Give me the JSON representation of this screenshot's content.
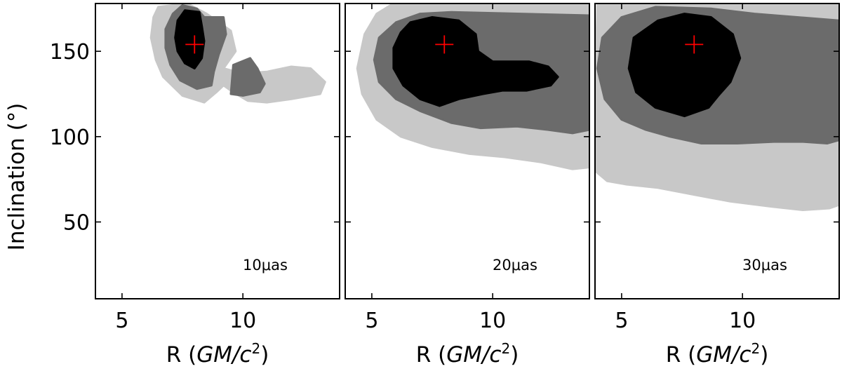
{
  "chart_data": {
    "type": "contour",
    "shared_y_axis": {
      "label": "Inclination (°)",
      "ticks": [
        50,
        100,
        150
      ],
      "ylim": [
        5,
        178
      ]
    },
    "shared_x_axis": {
      "label_prefix": "R (",
      "label_math": "GM/c",
      "label_exp": "2",
      "label_suffix": ")",
      "ticks": [
        5,
        10
      ],
      "xlim": [
        3.9,
        14
      ]
    },
    "levels": [
      {
        "name": "outer",
        "color": "#c8c8c8"
      },
      {
        "name": "middle",
        "color": "#6b6b6b"
      },
      {
        "name": "inner",
        "color": "#000000"
      }
    ],
    "true_value": {
      "R": 8.0,
      "inclination": 154,
      "color": "#ff0000"
    },
    "panels": [
      {
        "annotation": "10μas",
        "contours": {
          "outer": [
            [
              [
                6.5,
                176
              ],
              [
                7.7,
                178
              ],
              [
                8.5,
                172
              ],
              [
                9.5,
                162
              ],
              [
                9.7,
                150
              ],
              [
                9.2,
                140
              ],
              [
                10,
                137
              ],
              [
                11,
                138
              ],
              [
                12,
                141
              ],
              [
                12.8,
                140
              ],
              [
                13.4,
                132
              ],
              [
                13.2,
                125
              ],
              [
                12,
                122
              ],
              [
                11,
                120
              ],
              [
                10.2,
                121
              ],
              [
                9.6,
                126
              ],
              [
                9.2,
                130
              ],
              [
                8.9,
                126
              ],
              [
                8.4,
                120
              ],
              [
                7.5,
                124
              ],
              [
                6.7,
                135
              ],
              [
                6.4,
                145
              ],
              [
                6.2,
                158
              ],
              [
                6.3,
                170
              ]
            ]
          ],
          "middle": [
            [
              [
                7.1,
                172
              ],
              [
                7.5,
                177
              ],
              [
                8.1,
                175
              ],
              [
                8.4,
                170
              ],
              [
                9.2,
                170
              ],
              [
                9.3,
                160
              ],
              [
                9.0,
                148
              ],
              [
                8.8,
                138
              ],
              [
                8.7,
                130
              ],
              [
                8.1,
                128
              ],
              [
                7.4,
                133
              ],
              [
                7.0,
                142
              ],
              [
                6.8,
                152
              ],
              [
                6.8,
                163
              ]
            ],
            [
              [
                9.6,
                142
              ],
              [
                10.3,
                146
              ],
              [
                10.6,
                140
              ],
              [
                10.9,
                131
              ],
              [
                10.7,
                126
              ],
              [
                10.0,
                124
              ],
              [
                9.5,
                125
              ]
            ]
          ],
          "inner": [
            [
              [
                7.3,
                168
              ],
              [
                7.6,
                174
              ],
              [
                8.2,
                173
              ],
              [
                8.3,
                165
              ],
              [
                8.4,
                156
              ],
              [
                8.3,
                146
              ],
              [
                8.0,
                140
              ],
              [
                7.6,
                143
              ],
              [
                7.3,
                150
              ],
              [
                7.2,
                158
              ]
            ]
          ]
        }
      },
      {
        "annotation": "20μas",
        "contours": {
          "outer": [
            [
              [
                14,
                179
              ],
              [
                6.0,
                179
              ],
              [
                5.2,
                172
              ],
              [
                4.7,
                160
              ],
              [
                4.4,
                140
              ],
              [
                4.6,
                125
              ],
              [
                5.2,
                110
              ],
              [
                6.2,
                100
              ],
              [
                7.5,
                94
              ],
              [
                9.0,
                90
              ],
              [
                10.5,
                88
              ],
              [
                12,
                85
              ],
              [
                13.3,
                81
              ],
              [
                14,
                82
              ]
            ]
          ],
          "middle": [
            [
              [
                14,
                171
              ],
              [
                8.3,
                173
              ],
              [
                7.0,
                172
              ],
              [
                6.0,
                167
              ],
              [
                5.3,
                158
              ],
              [
                5.1,
                145
              ],
              [
                5.3,
                132
              ],
              [
                6.0,
                122
              ],
              [
                7.0,
                115
              ],
              [
                8.3,
                108
              ],
              [
                9.5,
                105
              ],
              [
                11,
                106
              ],
              [
                12.3,
                104
              ],
              [
                13.3,
                102
              ],
              [
                14,
                104
              ]
            ]
          ],
          "inner": [
            [
              [
                6.2,
                161
              ],
              [
                6.6,
                167
              ],
              [
                7.5,
                170
              ],
              [
                8.6,
                168
              ],
              [
                9.3,
                160
              ],
              [
                9.4,
                150
              ],
              [
                10.0,
                144
              ],
              [
                10.8,
                144
              ],
              [
                11.5,
                144
              ],
              [
                12.3,
                141
              ],
              [
                12.7,
                135
              ],
              [
                12.4,
                130
              ],
              [
                11.4,
                127
              ],
              [
                10.4,
                127
              ],
              [
                9.6,
                125
              ],
              [
                8.6,
                122
              ],
              [
                7.8,
                118
              ],
              [
                7.0,
                122
              ],
              [
                6.3,
                130
              ],
              [
                5.9,
                140
              ],
              [
                5.9,
                152
              ]
            ]
          ]
        }
      },
      {
        "annotation": "30μas",
        "contours": {
          "outer": [
            [
              [
                14,
                179
              ],
              [
                4.0,
                179
              ],
              [
                3.9,
                120
              ],
              [
                3.9,
                80
              ],
              [
                4.4,
                74
              ],
              [
                5.2,
                72
              ],
              [
                6.5,
                70
              ],
              [
                8.0,
                66
              ],
              [
                9.5,
                62
              ],
              [
                11.2,
                59
              ],
              [
                12.5,
                57
              ],
              [
                13.6,
                58
              ],
              [
                14,
                60
              ]
            ]
          ],
          "middle": [
            [
              [
                14,
                168
              ],
              [
                10.5,
                172
              ],
              [
                8.7,
                175
              ],
              [
                6.4,
                176
              ],
              [
                5.0,
                170
              ],
              [
                4.2,
                158
              ],
              [
                4.0,
                140
              ],
              [
                4.3,
                122
              ],
              [
                5.0,
                110
              ],
              [
                6.0,
                104
              ],
              [
                7.0,
                100
              ],
              [
                8.3,
                96
              ],
              [
                9.8,
                96
              ],
              [
                11.3,
                97
              ],
              [
                12.5,
                97
              ],
              [
                13.5,
                96
              ],
              [
                14,
                98
              ]
            ]
          ],
          "inner": [
            [
              [
                5.5,
                158
              ],
              [
                6.5,
                168
              ],
              [
                7.6,
                172
              ],
              [
                8.7,
                170
              ],
              [
                9.6,
                160
              ],
              [
                9.9,
                146
              ],
              [
                9.5,
                132
              ],
              [
                9.0,
                124
              ],
              [
                8.6,
                117
              ],
              [
                7.6,
                112
              ],
              [
                6.4,
                117
              ],
              [
                5.6,
                126
              ],
              [
                5.3,
                140
              ]
            ]
          ]
        }
      }
    ]
  }
}
